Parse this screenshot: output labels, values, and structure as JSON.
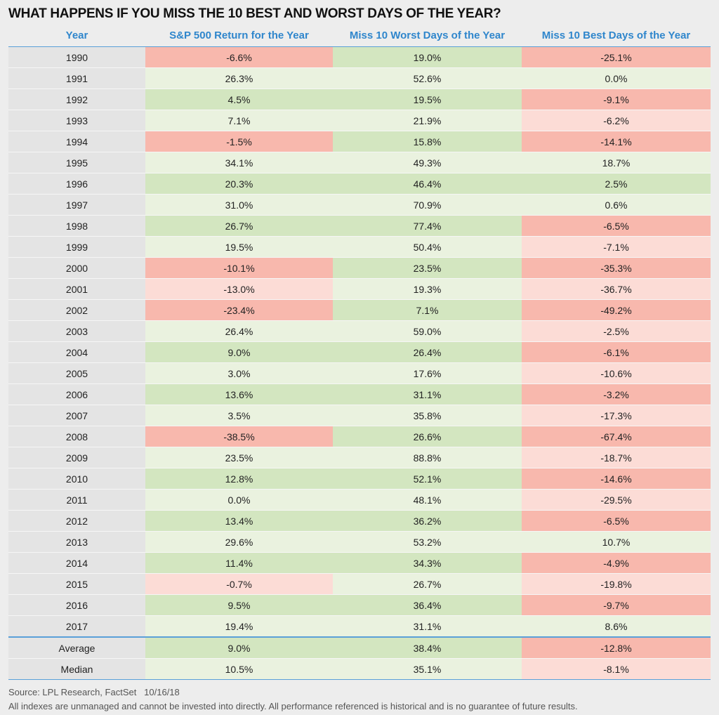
{
  "title": "WHAT HAPPENS IF YOU MISS THE 10 BEST AND WORST DAYS OF THE YEAR?",
  "columns": [
    "Year",
    "S&P 500 Return for the Year",
    "Miss 10 Worst Days of the Year",
    "Miss 10 Best Days of the Year"
  ],
  "colors": {
    "label_bg": "#e4e4e4",
    "green_light": "#eaf2df",
    "green_med": "#d3e6c0",
    "red_light": "#fcdcd6",
    "red_strong": "#f8b8ad",
    "header_text": "#2f86cc",
    "rule": "#5aa0d8"
  },
  "rows": [
    {
      "year": "1990",
      "sp": "-6.6%",
      "worst": "19.0%",
      "best": "-25.1%",
      "c": [
        "red_strong",
        "green_med",
        "red_strong"
      ]
    },
    {
      "year": "1991",
      "sp": "26.3%",
      "worst": "52.6%",
      "best": "0.0%",
      "c": [
        "green_light",
        "green_light",
        "green_light"
      ]
    },
    {
      "year": "1992",
      "sp": "4.5%",
      "worst": "19.5%",
      "best": "-9.1%",
      "c": [
        "green_med",
        "green_med",
        "red_strong"
      ]
    },
    {
      "year": "1993",
      "sp": "7.1%",
      "worst": "21.9%",
      "best": "-6.2%",
      "c": [
        "green_light",
        "green_light",
        "red_light"
      ]
    },
    {
      "year": "1994",
      "sp": "-1.5%",
      "worst": "15.8%",
      "best": "-14.1%",
      "c": [
        "red_strong",
        "green_med",
        "red_strong"
      ]
    },
    {
      "year": "1995",
      "sp": "34.1%",
      "worst": "49.3%",
      "best": "18.7%",
      "c": [
        "green_light",
        "green_light",
        "green_light"
      ]
    },
    {
      "year": "1996",
      "sp": "20.3%",
      "worst": "46.4%",
      "best": "2.5%",
      "c": [
        "green_med",
        "green_med",
        "green_med"
      ]
    },
    {
      "year": "1997",
      "sp": "31.0%",
      "worst": "70.9%",
      "best": "0.6%",
      "c": [
        "green_light",
        "green_light",
        "green_light"
      ]
    },
    {
      "year": "1998",
      "sp": "26.7%",
      "worst": "77.4%",
      "best": "-6.5%",
      "c": [
        "green_med",
        "green_med",
        "red_strong"
      ]
    },
    {
      "year": "1999",
      "sp": "19.5%",
      "worst": "50.4%",
      "best": "-7.1%",
      "c": [
        "green_light",
        "green_light",
        "red_light"
      ]
    },
    {
      "year": "2000",
      "sp": "-10.1%",
      "worst": "23.5%",
      "best": "-35.3%",
      "c": [
        "red_strong",
        "green_med",
        "red_strong"
      ]
    },
    {
      "year": "2001",
      "sp": "-13.0%",
      "worst": "19.3%",
      "best": "-36.7%",
      "c": [
        "red_light",
        "green_light",
        "red_light"
      ]
    },
    {
      "year": "2002",
      "sp": "-23.4%",
      "worst": "7.1%",
      "best": "-49.2%",
      "c": [
        "red_strong",
        "green_med",
        "red_strong"
      ]
    },
    {
      "year": "2003",
      "sp": "26.4%",
      "worst": "59.0%",
      "best": "-2.5%",
      "c": [
        "green_light",
        "green_light",
        "red_light"
      ]
    },
    {
      "year": "2004",
      "sp": "9.0%",
      "worst": "26.4%",
      "best": "-6.1%",
      "c": [
        "green_med",
        "green_med",
        "red_strong"
      ]
    },
    {
      "year": "2005",
      "sp": "3.0%",
      "worst": "17.6%",
      "best": "-10.6%",
      "c": [
        "green_light",
        "green_light",
        "red_light"
      ]
    },
    {
      "year": "2006",
      "sp": "13.6%",
      "worst": "31.1%",
      "best": "-3.2%",
      "c": [
        "green_med",
        "green_med",
        "red_strong"
      ]
    },
    {
      "year": "2007",
      "sp": "3.5%",
      "worst": "35.8%",
      "best": "-17.3%",
      "c": [
        "green_light",
        "green_light",
        "red_light"
      ]
    },
    {
      "year": "2008",
      "sp": "-38.5%",
      "worst": "26.6%",
      "best": "-67.4%",
      "c": [
        "red_strong",
        "green_med",
        "red_strong"
      ]
    },
    {
      "year": "2009",
      "sp": "23.5%",
      "worst": "88.8%",
      "best": "-18.7%",
      "c": [
        "green_light",
        "green_light",
        "red_light"
      ]
    },
    {
      "year": "2010",
      "sp": "12.8%",
      "worst": "52.1%",
      "best": "-14.6%",
      "c": [
        "green_med",
        "green_med",
        "red_strong"
      ]
    },
    {
      "year": "2011",
      "sp": "0.0%",
      "worst": "48.1%",
      "best": "-29.5%",
      "c": [
        "green_light",
        "green_light",
        "red_light"
      ]
    },
    {
      "year": "2012",
      "sp": "13.4%",
      "worst": "36.2%",
      "best": "-6.5%",
      "c": [
        "green_med",
        "green_med",
        "red_strong"
      ]
    },
    {
      "year": "2013",
      "sp": "29.6%",
      "worst": "53.2%",
      "best": "10.7%",
      "c": [
        "green_light",
        "green_light",
        "green_light"
      ]
    },
    {
      "year": "2014",
      "sp": "11.4%",
      "worst": "34.3%",
      "best": "-4.9%",
      "c": [
        "green_med",
        "green_med",
        "red_strong"
      ]
    },
    {
      "year": "2015",
      "sp": "-0.7%",
      "worst": "26.7%",
      "best": "-19.8%",
      "c": [
        "red_light",
        "green_light",
        "red_light"
      ]
    },
    {
      "year": "2016",
      "sp": "9.5%",
      "worst": "36.4%",
      "best": "-9.7%",
      "c": [
        "green_med",
        "green_med",
        "red_strong"
      ]
    },
    {
      "year": "2017",
      "sp": "19.4%",
      "worst": "31.1%",
      "best": "8.6%",
      "c": [
        "green_light",
        "green_light",
        "green_light"
      ]
    }
  ],
  "summary": [
    {
      "year": "Average",
      "sp": "9.0%",
      "worst": "38.4%",
      "best": "-12.8%",
      "c": [
        "green_med",
        "green_med",
        "red_strong"
      ]
    },
    {
      "year": "Median",
      "sp": "10.5%",
      "worst": "35.1%",
      "best": "-8.1%",
      "c": [
        "green_light",
        "green_light",
        "red_light"
      ]
    }
  ],
  "source": "Source: LPL Research, FactSet   10/16/18",
  "disclaimer": "All indexes are unmanaged and cannot be invested into directly. All performance referenced is historical and is no guarantee of future results."
}
